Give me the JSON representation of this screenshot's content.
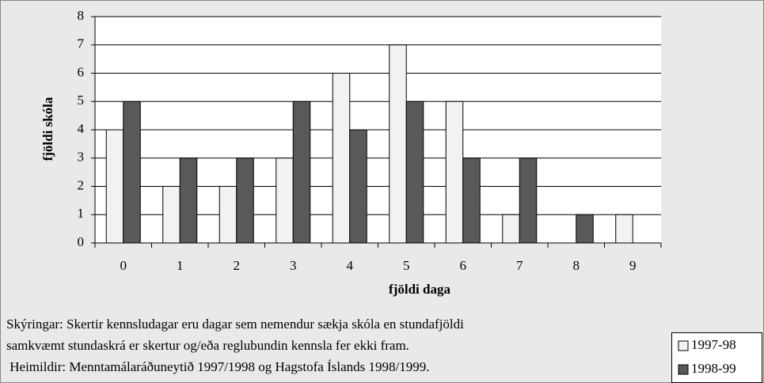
{
  "chart_data": {
    "type": "bar",
    "categories": [
      "0",
      "1",
      "2",
      "3",
      "4",
      "5",
      "6",
      "7",
      "8",
      "9"
    ],
    "series": [
      {
        "name": "1997-98",
        "color": "#f2f2f2",
        "values": [
          4,
          2,
          2,
          3,
          6,
          7,
          5,
          1,
          0,
          1
        ]
      },
      {
        "name": "1998-99",
        "color": "#595959",
        "values": [
          5,
          3,
          3,
          5,
          4,
          5,
          3,
          3,
          1,
          0
        ]
      }
    ],
    "xlabel": "fjöldi daga",
    "ylabel": "fjöldi skóla",
    "ylim": [
      0,
      8
    ],
    "yticks": [
      0,
      1,
      2,
      3,
      4,
      5,
      6,
      7,
      8
    ],
    "grid": true,
    "legend": "bottom-right",
    "notes": [
      "Skýringar: Skertir kennsludagar eru dagar sem nemendur sækja skóla en stundafjöldi",
      "samkvæmt stundaskrá er skertur og/eða reglubundin kennsla fer ekki fram.",
      " Heimildir: Menntamálaráðuneytið 1997/1998 og Hagstofa Íslands 1998/1999."
    ]
  }
}
